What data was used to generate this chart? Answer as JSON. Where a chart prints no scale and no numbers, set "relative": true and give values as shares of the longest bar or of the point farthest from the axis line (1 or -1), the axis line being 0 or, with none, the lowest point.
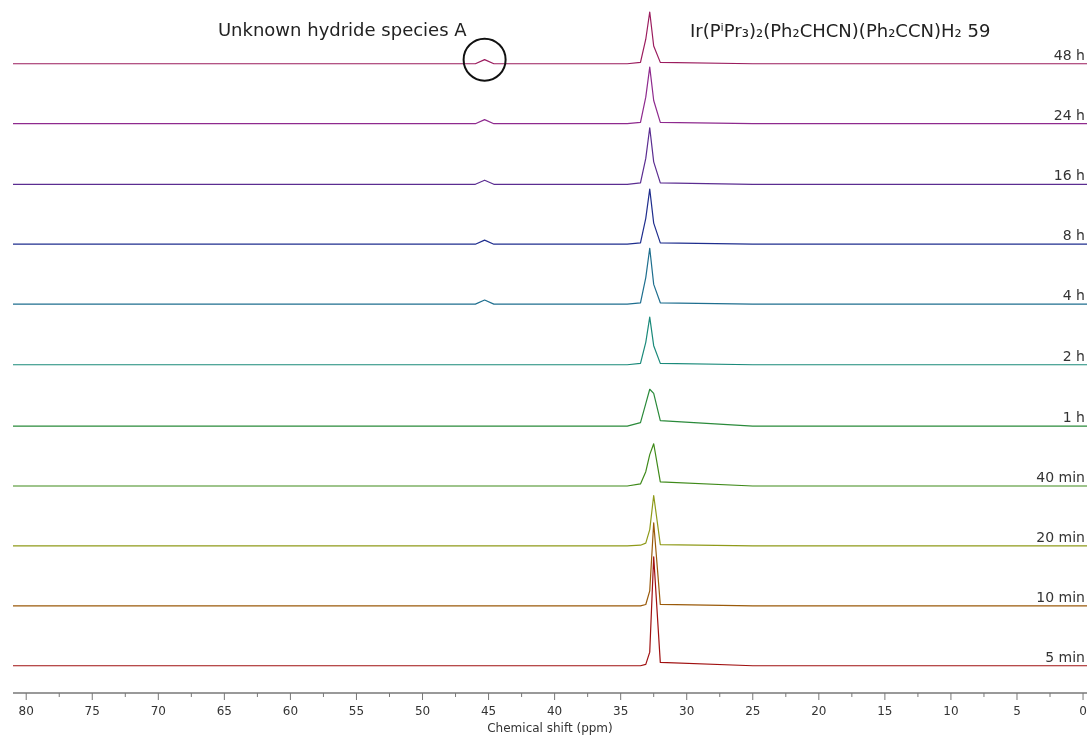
{
  "chart_data": {
    "type": "line",
    "relative": true,
    "title": "Ir(PⁱPr₃)₂(Ph₂CHCN)(Ph₂CCN)H₂ 59",
    "xlabel": "Chemical shift (ppm)",
    "x": [
      81,
      60,
      46,
      45.3,
      44.6,
      34.5,
      33.5,
      33.1,
      32.8,
      32.5,
      32,
      25,
      15,
      5,
      -0.3
    ],
    "xlim": [
      81,
      -0.3
    ],
    "xticks": [
      80,
      {
        "value": 77.5,
        "label": null
      },
      75,
      {
        "value": 72.5,
        "label": null
      },
      70,
      {
        "value": 67.5,
        "label": null
      },
      65,
      {
        "value": 62.5,
        "label": null
      },
      60,
      {
        "value": 57.5,
        "label": null
      },
      55,
      {
        "value": 52.5,
        "label": null
      },
      50,
      {
        "value": 47.5,
        "label": null
      },
      45,
      {
        "value": 42.5,
        "label": null
      },
      40,
      {
        "value": 37.5,
        "label": null
      },
      35,
      {
        "value": 32.5,
        "label": null
      },
      30,
      {
        "value": 27.5,
        "label": null
      },
      25,
      {
        "value": 22.5,
        "label": null
      },
      20,
      {
        "value": 17.5,
        "label": null
      },
      15,
      {
        "value": 12.5,
        "label": null
      },
      10,
      {
        "value": 7.5,
        "label": null
      },
      5,
      {
        "value": 2.5,
        "label": null
      },
      0
    ],
    "grid": false,
    "legend": false,
    "annotations": [
      {
        "text": "Unknown hydride species A",
        "x": 45.3,
        "y": 0.93
      }
    ],
    "series": [
      {
        "name": "48 h",
        "color": "#9b1c5e",
        "values": [
          0.924,
          0.924,
          0.924,
          0.93,
          0.924,
          0.924,
          0.926,
          0.96,
          1.0,
          0.95,
          0.926,
          0.924,
          0.924,
          0.924,
          0.924
        ]
      },
      {
        "name": "24 h",
        "color": "#8e2a8e",
        "values": [
          0.836,
          0.836,
          0.836,
          0.842,
          0.836,
          0.836,
          0.838,
          0.875,
          0.919,
          0.87,
          0.838,
          0.836,
          0.836,
          0.836,
          0.836
        ]
      },
      {
        "name": "16 h",
        "color": "#5b2d91",
        "values": [
          0.747,
          0.747,
          0.747,
          0.753,
          0.747,
          0.747,
          0.749,
          0.785,
          0.83,
          0.78,
          0.749,
          0.747,
          0.747,
          0.747,
          0.747
        ]
      },
      {
        "name": "8 h",
        "color": "#1f2e8e",
        "values": [
          0.659,
          0.659,
          0.659,
          0.665,
          0.659,
          0.659,
          0.661,
          0.697,
          0.74,
          0.69,
          0.661,
          0.659,
          0.659,
          0.659,
          0.659
        ]
      },
      {
        "name": "4 h",
        "color": "#1f6f8f",
        "values": [
          0.571,
          0.571,
          0.571,
          0.577,
          0.571,
          0.571,
          0.573,
          0.61,
          0.653,
          0.6,
          0.573,
          0.571,
          0.571,
          0.571,
          0.571
        ]
      },
      {
        "name": "2 h",
        "color": "#1a8a7a",
        "values": [
          0.482,
          0.482,
          0.482,
          0.482,
          0.482,
          0.482,
          0.484,
          0.515,
          0.552,
          0.51,
          0.484,
          0.482,
          0.482,
          0.482,
          0.482
        ]
      },
      {
        "name": "1 h",
        "color": "#2a8a3a",
        "values": [
          0.392,
          0.392,
          0.392,
          0.392,
          0.392,
          0.392,
          0.397,
          0.425,
          0.446,
          0.44,
          0.4,
          0.392,
          0.392,
          0.392,
          0.392
        ]
      },
      {
        "name": "40 min",
        "color": "#3f8a1a",
        "values": [
          0.304,
          0.304,
          0.304,
          0.304,
          0.304,
          0.304,
          0.307,
          0.325,
          0.35,
          0.366,
          0.31,
          0.304,
          0.304,
          0.304,
          0.304
        ]
      },
      {
        "name": "20 min",
        "color": "#8f9a1a",
        "values": [
          0.216,
          0.216,
          0.216,
          0.216,
          0.216,
          0.216,
          0.217,
          0.22,
          0.24,
          0.29,
          0.218,
          0.216,
          0.216,
          0.216,
          0.216
        ]
      },
      {
        "name": "10 min",
        "color": "#9a5a0a",
        "values": [
          0.128,
          0.128,
          0.128,
          0.128,
          0.128,
          0.128,
          0.128,
          0.13,
          0.15,
          0.25,
          0.13,
          0.128,
          0.128,
          0.128,
          0.128
        ]
      },
      {
        "name": "5 min",
        "color": "#a01010",
        "values": [
          0.04,
          0.04,
          0.04,
          0.04,
          0.04,
          0.04,
          0.04,
          0.042,
          0.06,
          0.2,
          0.045,
          0.04,
          0.04,
          0.04,
          0.04
        ]
      }
    ]
  }
}
